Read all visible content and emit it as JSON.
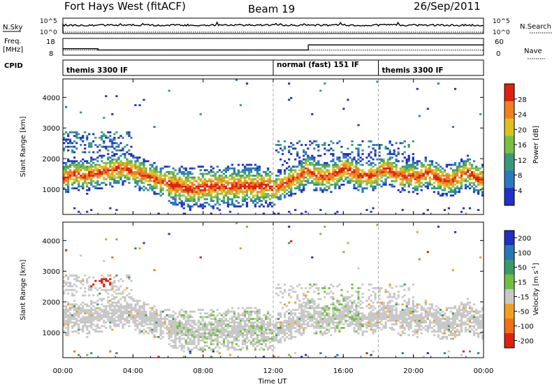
{
  "header": {
    "title": "Fort Hays West (fitACF)",
    "beam": "Beam 19",
    "date": "26/Sep/2011"
  },
  "side_labels": {
    "nsky": "N.Sky",
    "freq_line1": "Freq.",
    "freq_line2": "[MHz]",
    "cpid": "CPID",
    "nsearch": "N.Search",
    "nave": "Nave"
  },
  "noise_panel": {
    "left_ticks": [
      "10^5",
      "10^0"
    ],
    "right_ticks": [
      "10^5",
      "10^0"
    ]
  },
  "freq_panel": {
    "left_ticks": [
      "18",
      "8"
    ],
    "right_ticks": [
      "60",
      "0"
    ],
    "freq_steps": [
      {
        "start_h": 0,
        "end_h": 2.0,
        "value": 11.5
      },
      {
        "start_h": 2.0,
        "end_h": 14.0,
        "value": 10.5
      },
      {
        "start_h": 14.0,
        "end_h": 24,
        "value": 14.5
      }
    ],
    "nave_level": 0.3
  },
  "cpid": [
    {
      "label": "themis 3300 IF",
      "start_h": 0,
      "end_h": 12.0
    },
    {
      "label": "normal (fast) 151 IF",
      "start_h": 12.0,
      "end_h": 18.0
    },
    {
      "label": "themis 3300 IF",
      "start_h": 18.0,
      "end_h": 24
    }
  ],
  "chart_data": [
    {
      "type": "heatmap",
      "name": "power",
      "ylabel": "Slant Range [km]",
      "xlim": [
        0,
        24
      ],
      "ylim": [
        180,
        4600
      ],
      "yticks": [
        1000,
        2000,
        3000,
        4000
      ],
      "colorbar": {
        "label": "Power [dB]",
        "ticks": [
          4,
          8,
          12,
          16,
          20,
          24,
          28
        ],
        "range": [
          0,
          32
        ],
        "colors": [
          "#2030c8",
          "#2a78c0",
          "#3a9a78",
          "#78c040",
          "#e0c020",
          "#f08020",
          "#e02010"
        ]
      }
    },
    {
      "type": "heatmap",
      "name": "velocity",
      "ylabel": "Slant Range [km]",
      "xlabel": "Time UT",
      "xlim": [
        0,
        24
      ],
      "xticks": [
        "00:00",
        "04:00",
        "08:00",
        "12:00",
        "16:00",
        "20:00",
        "00:00"
      ],
      "ylim": [
        180,
        4600
      ],
      "yticks": [
        1000,
        2000,
        3000,
        4000
      ],
      "colorbar": {
        "label": "Velocity [m s^-1]",
        "ticks": [
          "200",
          "100",
          "50",
          "15",
          "-15",
          "-50",
          "-100",
          "-200"
        ],
        "colors": [
          "#2030c0",
          "#2878b8",
          "#3a9a6a",
          "#70c040",
          "#c8c8c8",
          "#f0a020",
          "#f07018",
          "#e02010"
        ]
      },
      "mode_boundaries_h": [
        12.0,
        18.0
      ]
    }
  ]
}
